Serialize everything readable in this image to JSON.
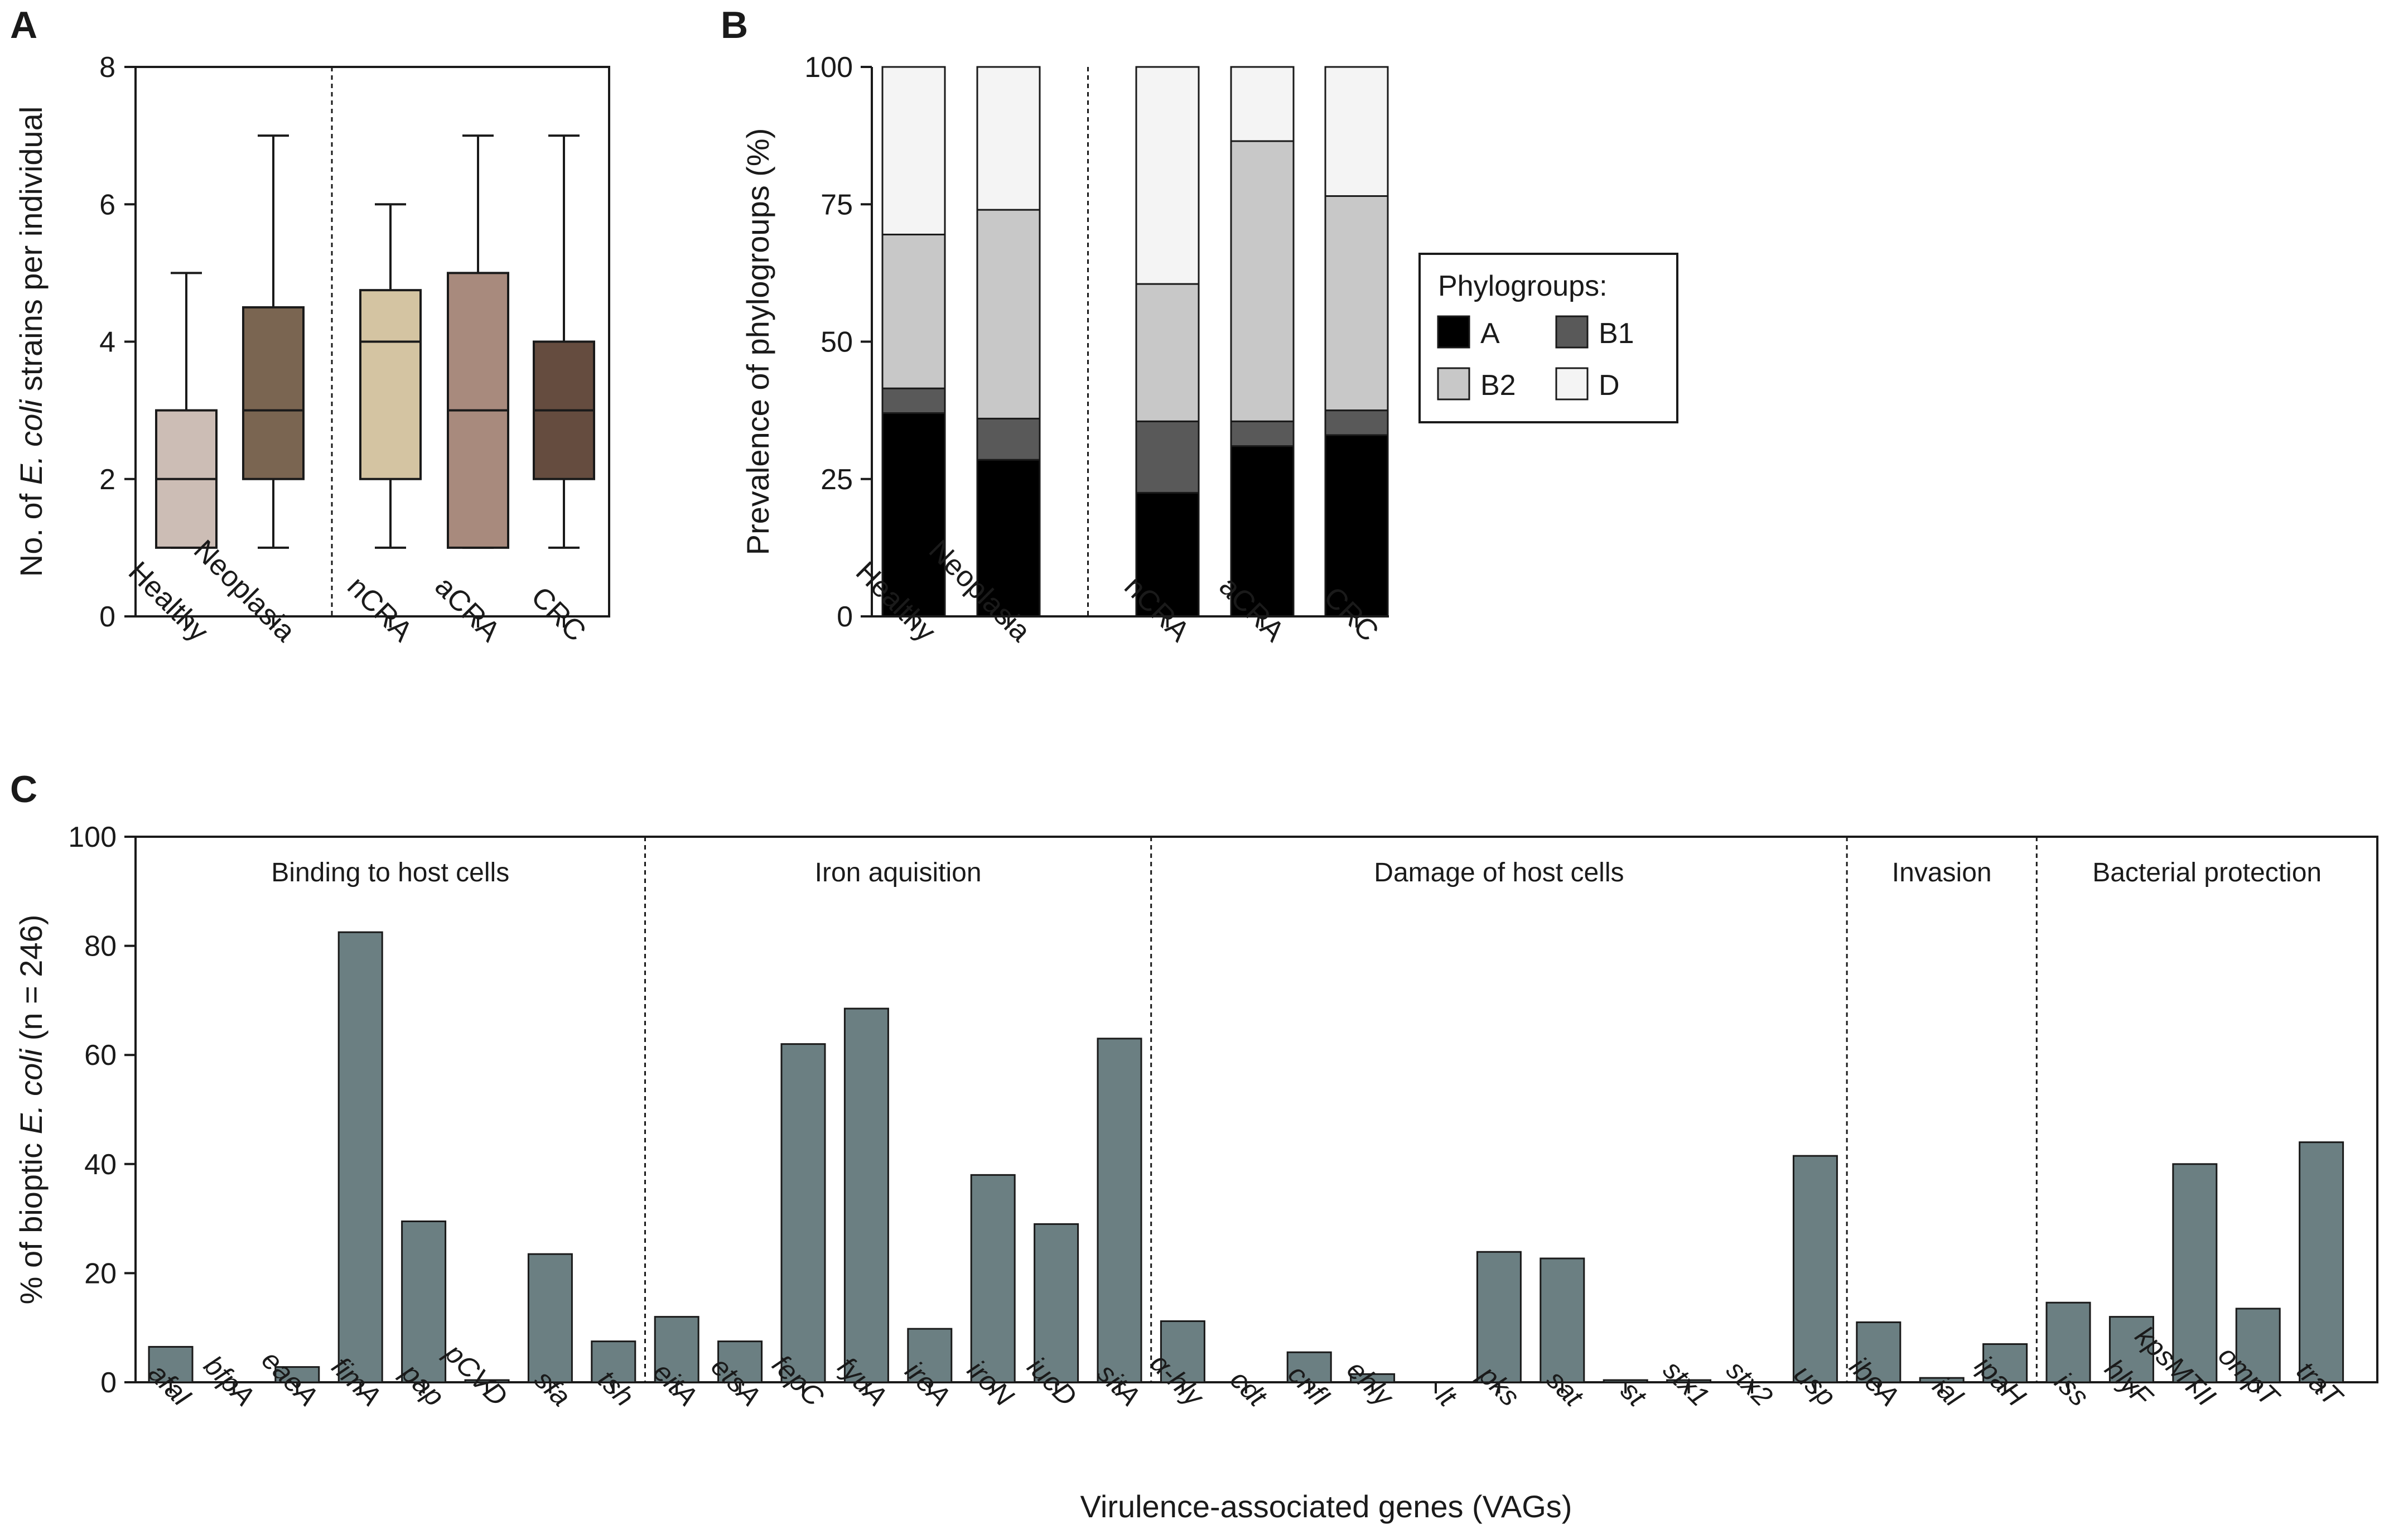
{
  "panel_letters": [
    "A",
    "B",
    "C"
  ],
  "chart_data": [
    {
      "panel": "A",
      "type": "box",
      "ylabel_prefix": "No. of ",
      "ylabel_italic": "E. coli",
      "ylabel_suffix": " strains per individual",
      "ylim": [
        0,
        8
      ],
      "yticks": [
        0,
        2,
        4,
        6,
        8
      ],
      "categories": [
        "Healthy",
        "Neoplasia",
        "nCRA",
        "aCRA",
        "CRC"
      ],
      "separator_after_index": 1,
      "colors": [
        "#ccbdb5",
        "#7a6551",
        "#d4c4a2",
        "#a88a7d",
        "#654c3f"
      ],
      "boxes": [
        {
          "min": 1,
          "q1": 1,
          "median": 2,
          "q3": 3,
          "max": 5
        },
        {
          "min": 1,
          "q1": 2,
          "median": 3,
          "q3": 4.5,
          "max": 7
        },
        {
          "min": 1,
          "q1": 2,
          "median": 4,
          "q3": 4.75,
          "max": 6
        },
        {
          "min": 1,
          "q1": 1,
          "median": 3,
          "q3": 5,
          "max": 7
        },
        {
          "min": 1,
          "q1": 2,
          "median": 3,
          "q3": 4,
          "max": 7
        }
      ]
    },
    {
      "panel": "B",
      "type": "stacked-bar",
      "ylabel": "Prevalence of phylogroups (%)",
      "ylim": [
        0,
        100
      ],
      "yticks": [
        0,
        25,
        50,
        75,
        100
      ],
      "categories": [
        "Healthy",
        "Neoplasia",
        "nCRA",
        "aCRA",
        "CRC"
      ],
      "separator_after_index": 1,
      "legend_title": "Phylogroups:",
      "series": [
        {
          "name": "A",
          "color": "#000000",
          "values": [
            37,
            28.5,
            22.5,
            31,
            33
          ]
        },
        {
          "name": "B1",
          "color": "#595959",
          "values": [
            4.5,
            7.5,
            13,
            4.5,
            4.5
          ]
        },
        {
          "name": "B2",
          "color": "#c8c8c8",
          "values": [
            28,
            38,
            25,
            51,
            39
          ]
        },
        {
          "name": "D",
          "color": "#f4f4f4",
          "values": [
            30.5,
            26,
            39.5,
            13.5,
            23.5
          ]
        }
      ]
    },
    {
      "panel": "C",
      "type": "bar",
      "ylabel_prefix": "% of bioptic ",
      "ylabel_italic": "E. coli",
      "ylabel_suffix": " (n = 246)",
      "xlabel": "Virulence-associated genes (VAGs)",
      "ylim": [
        0,
        100
      ],
      "yticks": [
        0,
        20,
        40,
        60,
        80,
        100
      ],
      "bar_color": "#6b7f82",
      "categories": [
        "afaI",
        "bfpA",
        "eaeA",
        "fimA",
        "pap",
        "pCVD",
        "sfa",
        "tsh",
        "eitA",
        "etsA",
        "fepC",
        "fyuA",
        "ireA",
        "iroN",
        "iucD",
        "sitA",
        "α-hly",
        "cdt",
        "cnfI",
        "ehly",
        "lt",
        "pks",
        "sat",
        "st",
        "stx1",
        "stx2",
        "usp",
        "ibeA",
        "ial",
        "ipaH",
        "iss",
        "hlyF",
        "kpsMTII",
        "ompT",
        "traT"
      ],
      "values": [
        6.5,
        0,
        2.8,
        82.5,
        29.5,
        0.4,
        23.5,
        7.5,
        12,
        7.5,
        62,
        68.5,
        9.8,
        38,
        29,
        63,
        11.2,
        0,
        5.5,
        1.5,
        0,
        23.9,
        22.7,
        0.4,
        0.4,
        0,
        41.5,
        11,
        0.8,
        7,
        14.6,
        12,
        40,
        13.5,
        44
      ],
      "groups": [
        {
          "label": "Binding to host cells",
          "start": 0,
          "end": 7
        },
        {
          "label": "Iron aquisition",
          "start": 8,
          "end": 15
        },
        {
          "label": "Damage of host cells",
          "start": 16,
          "end": 26
        },
        {
          "label": "Invasion",
          "start": 27,
          "end": 29
        },
        {
          "label": "Bacterial protection",
          "start": 30,
          "end": 34
        }
      ]
    }
  ]
}
